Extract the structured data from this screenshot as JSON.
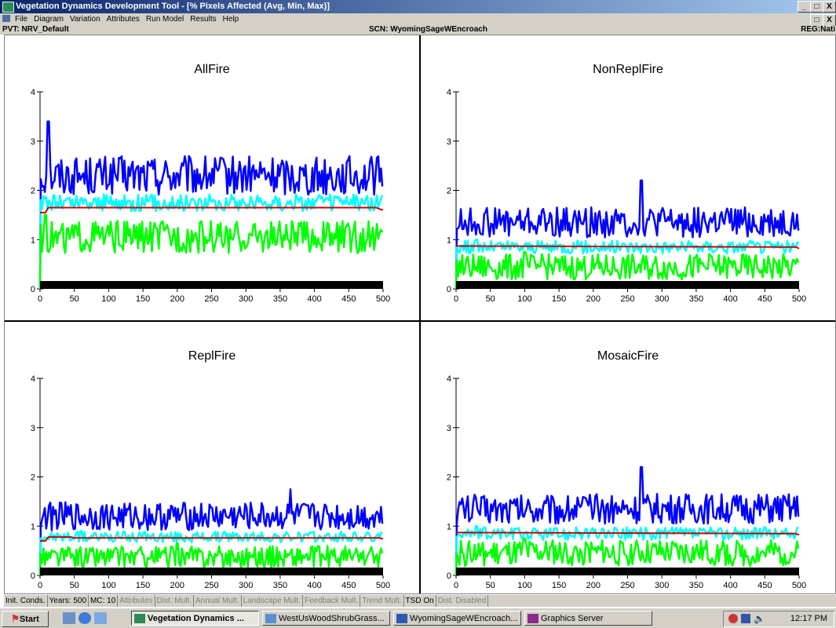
{
  "window": {
    "title": "Vegetation Dynamics Development Tool - [% Pixels Affected (Avg, Min, Max)]",
    "buttons": [
      "_",
      "□",
      "X"
    ]
  },
  "menu": [
    "File",
    "Diagram",
    "Variation",
    "Attributes",
    "Run Model",
    "Results",
    "Help"
  ],
  "info": {
    "pvt": "PVT: NRV_Default",
    "scn": "SCN: WyomingSageWEncroach",
    "reg": "REG:Nati"
  },
  "colors": {
    "max": "#0000ff",
    "avg": "#00ffff",
    "min": "#00ff00",
    "mean": "#cc0000",
    "axis_band": "#000000"
  },
  "chart_data": [
    {
      "type": "line",
      "title": "AllFire",
      "xlim": [
        0,
        500
      ],
      "ylim": [
        0,
        4
      ],
      "x_ticks": [
        0,
        50,
        100,
        150,
        200,
        250,
        300,
        350,
        400,
        450,
        500
      ],
      "y_ticks": [
        0,
        1,
        2,
        3,
        4
      ],
      "series": [
        {
          "role": "max",
          "mean": 2.3,
          "spread": 0.18,
          "spike": 3.4,
          "spike_x": 12
        },
        {
          "role": "avg",
          "mean": 1.75,
          "spread": 0.08,
          "spike": 1.9,
          "spike_x": 20
        },
        {
          "role": "min",
          "mean": 1.05,
          "spread": 0.15,
          "spike": 1.5,
          "spike_x": 8
        },
        {
          "role": "mean",
          "points": [
            [
              0,
              1.55
            ],
            [
              8,
              1.55
            ],
            [
              12,
              1.65
            ],
            [
              490,
              1.65
            ],
            [
              495,
              1.62
            ],
            [
              500,
              1.6
            ]
          ]
        }
      ]
    },
    {
      "type": "line",
      "title": "NonReplFire",
      "xlim": [
        0,
        500
      ],
      "ylim": [
        0,
        4
      ],
      "x_ticks": [
        0,
        50,
        100,
        150,
        200,
        250,
        300,
        350,
        400,
        450,
        500
      ],
      "y_ticks": [
        0,
        1,
        2,
        3,
        4
      ],
      "series": [
        {
          "role": "max",
          "mean": 1.35,
          "spread": 0.14,
          "spike": 2.2,
          "spike_x": 270
        },
        {
          "role": "avg",
          "mean": 0.85,
          "spread": 0.06,
          "spike": 1.0,
          "spike_x": 30
        },
        {
          "role": "min",
          "mean": 0.45,
          "spread": 0.12,
          "spike": 0.75,
          "spike_x": 100
        },
        {
          "role": "mean",
          "points": [
            [
              0,
              0.87
            ],
            [
              495,
              0.85
            ],
            [
              500,
              0.82
            ]
          ]
        }
      ]
    },
    {
      "type": "line",
      "title": "ReplFire",
      "xlim": [
        0,
        500
      ],
      "ylim": [
        0,
        4
      ],
      "x_ticks": [
        0,
        50,
        100,
        150,
        200,
        250,
        300,
        350,
        400,
        450,
        500
      ],
      "y_ticks": [
        0,
        1,
        2,
        3,
        4
      ],
      "series": [
        {
          "role": "max",
          "mean": 1.2,
          "spread": 0.13,
          "spike": 1.75,
          "spike_x": 365
        },
        {
          "role": "avg",
          "mean": 0.78,
          "spread": 0.05,
          "spike": 0.9,
          "spike_x": 60
        },
        {
          "role": "min",
          "mean": 0.38,
          "spread": 0.1,
          "spike": 0.65,
          "spike_x": 200
        },
        {
          "role": "mean",
          "points": [
            [
              0,
              0.7
            ],
            [
              8,
              0.7
            ],
            [
              12,
              0.78
            ],
            [
              45,
              0.78
            ],
            [
              50,
              0.76
            ],
            [
              495,
              0.76
            ],
            [
              500,
              0.74
            ]
          ]
        }
      ]
    },
    {
      "type": "line",
      "title": "MosaicFire",
      "xlim": [
        0,
        500
      ],
      "ylim": [
        0,
        4
      ],
      "x_ticks": [
        0,
        50,
        100,
        150,
        200,
        250,
        300,
        350,
        400,
        450,
        500
      ],
      "y_ticks": [
        0,
        1,
        2,
        3,
        4
      ],
      "series": [
        {
          "role": "max",
          "mean": 1.35,
          "spread": 0.14,
          "spike": 2.2,
          "spike_x": 270
        },
        {
          "role": "avg",
          "mean": 0.85,
          "spread": 0.06,
          "spike": 1.0,
          "spike_x": 30
        },
        {
          "role": "min",
          "mean": 0.45,
          "spread": 0.12,
          "spike": 0.75,
          "spike_x": 100
        },
        {
          "role": "mean",
          "points": [
            [
              0,
              0.87
            ],
            [
              495,
              0.85
            ],
            [
              500,
              0.82
            ]
          ]
        }
      ]
    }
  ],
  "status": [
    {
      "label": "Init. Conds.",
      "disabled": false
    },
    {
      "label": "Years: 500",
      "disabled": false
    },
    {
      "label": "MC: 10",
      "disabled": false
    },
    {
      "label": "Attributes",
      "disabled": true
    },
    {
      "label": "Dist. Mult.",
      "disabled": true
    },
    {
      "label": "Annual Mult.",
      "disabled": true
    },
    {
      "label": "Landscape Mult.",
      "disabled": true
    },
    {
      "label": "Feedback Mult.",
      "disabled": true
    },
    {
      "label": "Trend Mult.",
      "disabled": true
    },
    {
      "label": "TSD On",
      "disabled": false
    },
    {
      "label": "Dist. Disabled",
      "disabled": true
    }
  ],
  "taskbar": {
    "start": "Start",
    "tasks": [
      {
        "label": "Vegetation Dynamics ...",
        "active": true
      },
      {
        "label": "WestUsWoodShrubGrass...",
        "active": false
      },
      {
        "label": "WyomingSageWEncroach...",
        "active": false
      },
      {
        "label": "Graphics Server",
        "active": false
      }
    ],
    "clock": "12:17 PM"
  }
}
